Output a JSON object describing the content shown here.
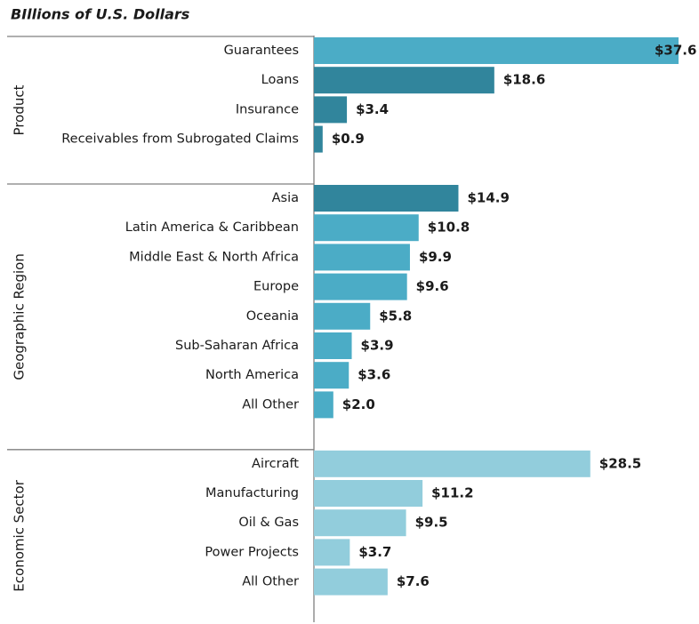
{
  "chart_data": {
    "type": "bar",
    "orientation": "horizontal",
    "title": "BIllions of U.S. Dollars",
    "groups": [
      {
        "name": "Product",
        "categories": [
          "Guarantees",
          "Loans",
          "Insurance",
          "Receivables from Subrogated Claims"
        ],
        "values": [
          37.6,
          18.6,
          3.4,
          0.9
        ],
        "value_labels": [
          "$37.6",
          "$18.6",
          "$3.4",
          "$0.9"
        ],
        "colors": [
          "#4bacc6",
          "#31859c",
          "#31859c",
          "#31859c"
        ]
      },
      {
        "name": "Geographic Region",
        "categories": [
          "Asia",
          "Latin America & Caribbean",
          "Middle East & North Africa",
          "Europe",
          "Oceania",
          "Sub-Saharan Africa",
          "North America",
          "All Other"
        ],
        "values": [
          14.9,
          10.8,
          9.9,
          9.6,
          5.8,
          3.9,
          3.6,
          2.0
        ],
        "value_labels": [
          "$14.9",
          "$10.8",
          "$9.9",
          "$9.6",
          "$5.8",
          "$3.9",
          "$3.6",
          "$2.0"
        ],
        "colors": [
          "#31859c",
          "#4bacc6",
          "#4bacc6",
          "#4bacc6",
          "#4bacc6",
          "#4bacc6",
          "#4bacc6",
          "#4bacc6"
        ]
      },
      {
        "name": "Economic Sector",
        "categories": [
          "Aircraft",
          "Manufacturing",
          "Oil & Gas",
          "Power Projects",
          "All Other"
        ],
        "values": [
          28.5,
          11.2,
          9.5,
          3.7,
          7.6
        ],
        "value_labels": [
          "$28.5",
          "$11.2",
          "$9.5",
          "$3.7",
          "$7.6"
        ],
        "colors": [
          "#92cddc",
          "#92cddc",
          "#92cddc",
          "#92cddc",
          "#92cddc"
        ]
      }
    ]
  }
}
